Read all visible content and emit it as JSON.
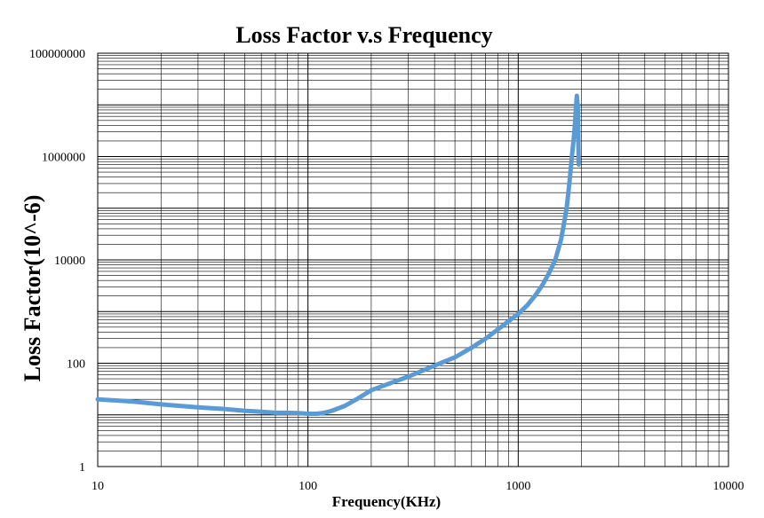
{
  "chart_data": {
    "type": "line",
    "title": "Loss Factor v.s Frequency",
    "xlabel": "Frequency(KHz)",
    "ylabel": "Loss Factor(10^-6)",
    "xscale": "log",
    "yscale": "log",
    "xlim": [
      10,
      10000
    ],
    "ylim": [
      1,
      100000000
    ],
    "x_ticks": [
      "10",
      "100",
      "1000",
      "10000"
    ],
    "y_ticks": [
      "1",
      "100",
      "10000",
      "1000000",
      "100000000"
    ],
    "grid": true,
    "legend": "none",
    "series_color": "#5b9bd5",
    "series": [
      {
        "x": [
          10,
          15,
          20,
          30,
          40,
          50,
          60,
          70,
          80,
          90,
          100,
          110,
          120,
          130,
          150,
          170,
          200,
          250,
          300,
          400,
          500,
          600,
          700,
          800,
          900,
          1000,
          1100,
          1200,
          1300,
          1400,
          1500,
          1600,
          1700,
          1750,
          1800,
          1850,
          1880,
          1900,
          1920,
          1940
        ],
        "y": [
          20,
          18,
          16,
          14,
          13,
          12,
          11.5,
          11,
          11,
          10.8,
          10.5,
          10.5,
          11,
          12,
          15,
          20,
          30,
          42,
          55,
          90,
          130,
          200,
          300,
          450,
          650,
          900,
          1300,
          2000,
          3200,
          5500,
          10000,
          25000,
          100000,
          300000,
          1000000,
          3000000,
          8000000,
          15000000,
          9000000,
          700000
        ]
      }
    ]
  }
}
